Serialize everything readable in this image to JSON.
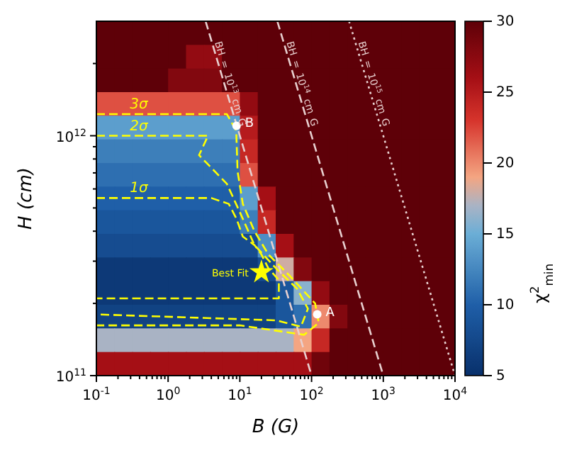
{
  "chart_data": [
    {
      "type": "heatmap",
      "clabel": "χ$^{2}$$_{min}$",
      "clim": [
        5,
        30
      ],
      "cticks": [
        5,
        10,
        15,
        20,
        25,
        30
      ],
      "categories": [
        null,
        null,
        null,
        null,
        null,
        null,
        null,
        null,
        null,
        null,
        null,
        null,
        null,
        null,
        null,
        null,
        null,
        null,
        null,
        null
      ],
      "y_categories": [
        null,
        null,
        null,
        null,
        null,
        null,
        null,
        null,
        null,
        null,
        null,
        null,
        null,
        null,
        null
      ],
      "cells": [
        [
          30,
          30,
          30,
          30,
          30,
          30,
          30,
          30,
          30,
          30,
          30,
          30,
          30,
          30,
          30,
          30,
          30,
          30,
          30,
          30
        ],
        [
          30,
          30,
          30,
          30,
          30,
          27,
          27,
          30,
          30,
          30,
          30,
          30,
          30,
          30,
          30,
          30,
          30,
          30,
          30,
          30
        ],
        [
          30,
          30,
          30,
          30,
          28,
          28,
          28,
          30,
          30,
          30,
          30,
          30,
          30,
          30,
          30,
          30,
          30,
          30,
          30,
          30
        ],
        [
          22,
          22,
          22,
          22,
          22,
          22,
          22,
          22,
          27,
          30,
          30,
          30,
          30,
          30,
          30,
          30,
          30,
          30,
          30,
          30
        ],
        [
          14,
          14,
          14,
          14,
          14,
          14,
          14,
          14,
          25,
          30,
          30,
          30,
          30,
          30,
          30,
          30,
          30,
          30,
          30,
          30
        ],
        [
          12,
          12,
          12,
          12,
          12,
          12,
          12,
          12,
          24,
          30,
          30,
          30,
          30,
          30,
          30,
          30,
          30,
          30,
          30,
          30
        ],
        [
          11,
          11,
          11,
          11,
          11,
          11,
          11,
          11,
          22,
          30,
          30,
          30,
          30,
          30,
          30,
          30,
          30,
          30,
          30,
          30
        ],
        [
          10,
          10,
          10,
          10,
          10,
          10,
          10,
          10,
          14,
          26,
          30,
          30,
          30,
          30,
          30,
          30,
          30,
          30,
          30,
          30
        ],
        [
          9,
          9,
          9,
          9,
          9,
          9,
          9,
          9,
          12,
          24,
          30,
          30,
          30,
          30,
          30,
          30,
          30,
          30,
          30,
          30
        ],
        [
          8,
          8,
          8,
          8,
          8,
          8,
          8,
          8,
          8,
          13,
          26,
          30,
          30,
          30,
          30,
          30,
          30,
          30,
          30,
          30
        ],
        [
          6,
          6,
          6,
          6,
          6,
          6,
          6,
          6,
          6,
          8,
          18,
          28,
          30,
          30,
          30,
          30,
          30,
          30,
          30,
          30
        ],
        [
          6,
          6,
          6,
          6,
          6,
          6,
          6,
          6,
          6,
          6,
          9,
          16,
          27,
          30,
          30,
          30,
          30,
          30,
          30,
          30
        ],
        [
          7,
          7,
          7,
          7,
          7,
          7,
          7,
          7,
          7,
          7,
          9,
          11,
          20,
          28,
          30,
          30,
          30,
          30,
          30,
          30
        ],
        [
          17,
          17,
          17,
          17,
          17,
          17,
          17,
          17,
          17,
          17,
          17,
          19,
          24,
          30,
          30,
          30,
          30,
          30,
          30,
          30
        ],
        [
          26,
          26,
          26,
          26,
          26,
          26,
          26,
          26,
          26,
          26,
          26,
          26,
          29,
          30,
          30,
          30,
          30,
          30,
          30,
          30
        ]
      ]
    },
    {
      "type": "line",
      "xlabel": "B (G)",
      "ylabel": "H (cm)",
      "log": "xy",
      "xlim": [
        0.1,
        10000
      ],
      "ylim": [
        100000000000.0,
        3000000000000.0
      ],
      "xticks": [
        {
          "value": 0.1,
          "label": "10$^{-1}$"
        },
        {
          "value": 0.2,
          "label": null
        },
        {
          "value": 0.3,
          "label": null
        },
        {
          "value": 0.4,
          "label": null
        },
        {
          "value": 0.5,
          "label": null
        },
        {
          "value": 0.6,
          "label": null
        },
        {
          "value": 0.7,
          "label": null
        },
        {
          "value": 0.8,
          "label": null
        },
        {
          "value": 0.9,
          "label": null
        },
        {
          "value": 1,
          "label": "10$^{0}$"
        },
        {
          "value": 2,
          "label": null
        },
        {
          "value": 3,
          "label": null
        },
        {
          "value": 4,
          "label": null
        },
        {
          "value": 5,
          "label": null
        },
        {
          "value": 6,
          "label": null
        },
        {
          "value": 7,
          "label": null
        },
        {
          "value": 8,
          "label": null
        },
        {
          "value": 9,
          "label": null
        },
        {
          "value": 10,
          "label": "10$^{1}$"
        },
        {
          "value": 20,
          "label": null
        },
        {
          "value": 30,
          "label": null
        },
        {
          "value": 40,
          "label": null
        },
        {
          "value": 50,
          "label": null
        },
        {
          "value": 60,
          "label": null
        },
        {
          "value": 70,
          "label": null
        },
        {
          "value": 80,
          "label": null
        },
        {
          "value": 90,
          "label": null
        },
        {
          "value": 100,
          "label": "10$^{2}$"
        },
        {
          "value": 200,
          "label": null
        },
        {
          "value": 300,
          "label": null
        },
        {
          "value": 400,
          "label": null
        },
        {
          "value": 500,
          "label": null
        },
        {
          "value": 600,
          "label": null
        },
        {
          "value": 700,
          "label": null
        },
        {
          "value": 800,
          "label": null
        },
        {
          "value": 900,
          "label": null
        },
        {
          "value": 1000,
          "label": "10$^{3}$"
        },
        {
          "value": 2000,
          "label": null
        },
        {
          "value": 3000,
          "label": null
        },
        {
          "value": 4000,
          "label": null
        },
        {
          "value": 5000,
          "label": null
        },
        {
          "value": 6000,
          "label": null
        },
        {
          "value": 7000,
          "label": null
        },
        {
          "value": 8000,
          "label": null
        },
        {
          "value": 9000,
          "label": null
        },
        {
          "value": 10000,
          "label": "10$^{4}$"
        }
      ],
      "yticks": [
        {
          "value": 100000000000.0,
          "label": "10$^{11}$"
        },
        {
          "value": 200000000000.0,
          "label": null
        },
        {
          "value": 300000000000.0,
          "label": null
        },
        {
          "value": 400000000000.0,
          "label": null
        },
        {
          "value": 500000000000.0,
          "label": null
        },
        {
          "value": 600000000000.0,
          "label": null
        },
        {
          "value": 700000000000.0,
          "label": null
        },
        {
          "value": 800000000000.0,
          "label": null
        },
        {
          "value": 900000000000.0,
          "label": null
        },
        {
          "value": 1000000000000.0,
          "label": "10$^{12}$"
        },
        {
          "value": 2000000000000.0,
          "label": null
        }
      ],
      "series": [
        {
          "type": "line",
          "name": "1σ",
          "color": "#ffff00",
          "line_style": "dashed",
          "x": [
            0.1,
            4,
            7,
            9,
            11,
            16,
            20,
            25,
            35,
            35,
            10,
            0.1
          ],
          "values": [
            550000000000.0,
            550000000000.0,
            520000000000.0,
            450000000000.0,
            380000000000.0,
            350000000000.0,
            320000000000.0,
            280000000000.0,
            250000000000.0,
            210000000000.0,
            210000000000.0,
            210000000000.0
          ]
        },
        {
          "type": "line",
          "name": "2σ",
          "color": "#ffff00",
          "line_style": "dashed",
          "x": [
            0.1,
            3.6,
            2.7,
            6.6,
            10,
            16,
            32,
            63,
            89,
            71,
            32,
            0.1
          ],
          "values": [
            1000000000000.0,
            1000000000000.0,
            830000000000.0,
            630000000000.0,
            480000000000.0,
            350000000000.0,
            280000000000.0,
            230000000000.0,
            190000000000.0,
            160000000000.0,
            170000000000.0,
            180000000000.0
          ]
        },
        {
          "type": "line",
          "name": "3σ",
          "color": "#ffff00",
          "line_style": "dashed",
          "x": [
            0.1,
            6.6,
            8.9,
            9.3,
            11,
            16,
            25,
            50,
            112,
            126,
            79,
            10,
            0.1
          ],
          "values": [
            1230000000000.0,
            1230000000000.0,
            1050000000000.0,
            710000000000.0,
            520000000000.0,
            400000000000.0,
            320000000000.0,
            260000000000.0,
            200000000000.0,
            166000000000.0,
            148000000000.0,
            162000000000.0,
            162000000000.0
          ]
        },
        {
          "type": "line",
          "name": "BH = 10$^{13}$ cm G",
          "color": "#e8d0d0",
          "line_style": "dashed",
          "x": [
            3.33,
            100
          ],
          "values": [
            3000000000000.0,
            100000000000.0
          ]
        },
        {
          "type": "line",
          "name": "BH = 10$^{14}$ cm G",
          "color": "#e8d0d0",
          "line_style": "dashed",
          "x": [
            33.3,
            1000
          ],
          "values": [
            3000000000000.0,
            100000000000.0
          ]
        },
        {
          "type": "line",
          "name": "BH = 10$^{15}$ cm G",
          "color": "#e8d0d0",
          "line_style": "dotted",
          "x": [
            333,
            10000
          ],
          "values": [
            3000000000000.0,
            100000000000.0
          ]
        },
        {
          "type": "scatter",
          "name": "B",
          "color": "#ffffff",
          "marker": "circle",
          "x": [
            9
          ],
          "values": [
            1100000000000.0
          ]
        },
        {
          "type": "scatter",
          "name": "A",
          "color": "#ffffff",
          "marker": "circle",
          "x": [
            120
          ],
          "values": [
            180000000000.0
          ]
        },
        {
          "type": "scatter",
          "name": "Best Fit",
          "color": "#ffff00",
          "marker": "star",
          "x": [
            20
          ],
          "values": [
            270000000000.0
          ]
        }
      ]
    }
  ]
}
